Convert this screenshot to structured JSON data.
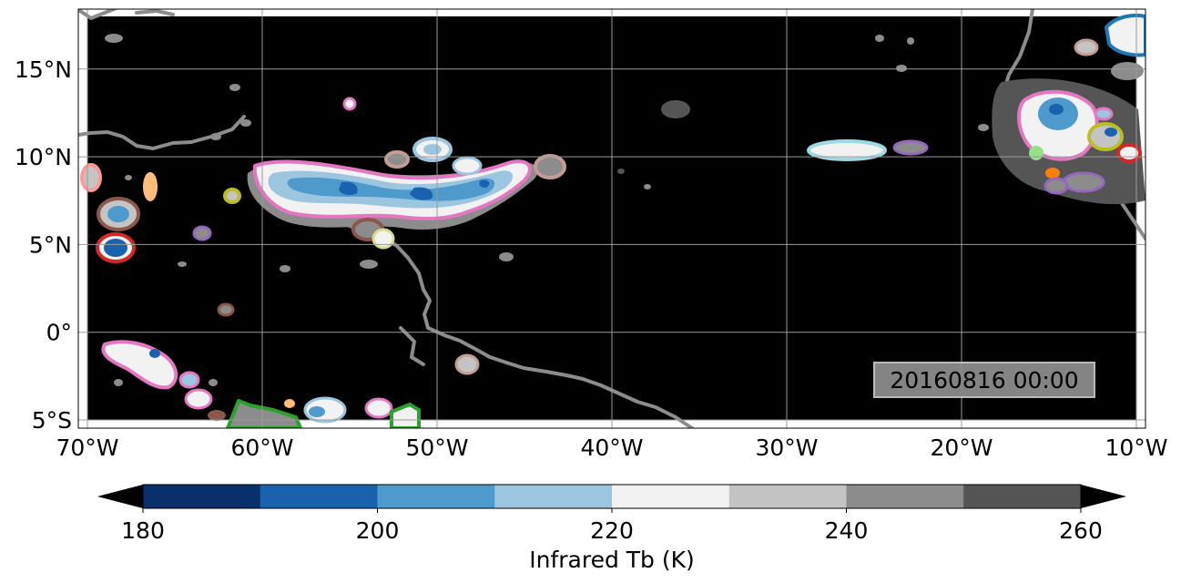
{
  "map": {
    "extent": {
      "lon": [
        -70,
        -10
      ],
      "lat": [
        -5,
        18
      ]
    },
    "lat_ticks": [
      {
        "value": 15,
        "label": "15°N"
      },
      {
        "value": 10,
        "label": "10°N"
      },
      {
        "value": 5,
        "label": "5°N"
      },
      {
        "value": 0,
        "label": "0°"
      },
      {
        "value": -5,
        "label": "5°S"
      }
    ],
    "lon_ticks": [
      {
        "value": -70,
        "label": "70°W"
      },
      {
        "value": -60,
        "label": "60°W"
      },
      {
        "value": -50,
        "label": "50°W"
      },
      {
        "value": -40,
        "label": "40°W"
      },
      {
        "value": -30,
        "label": "30°W"
      },
      {
        "value": -20,
        "label": "20°W"
      },
      {
        "value": -10,
        "label": "10°W"
      }
    ],
    "background_color": "#000000",
    "coastline_color": "#8c8c8c",
    "grid": true,
    "timestamp": "20160816 00:00"
  },
  "colorbar": {
    "label": "Infrared Tb (K)",
    "min": 180,
    "max": 260,
    "extend": "both",
    "ticks": [
      {
        "value": 180,
        "label": "180"
      },
      {
        "value": 200,
        "label": "200"
      },
      {
        "value": 220,
        "label": "220"
      },
      {
        "value": 240,
        "label": "240"
      },
      {
        "value": 260,
        "label": "260"
      }
    ],
    "colors": [
      "#08306b",
      "#1a62ae",
      "#4f9acd",
      "#9cc6df",
      "#f2f2f2",
      "#c4c4c4",
      "#8c8c8c",
      "#555555"
    ],
    "under_color": "#000000",
    "over_color": "#000000"
  }
}
